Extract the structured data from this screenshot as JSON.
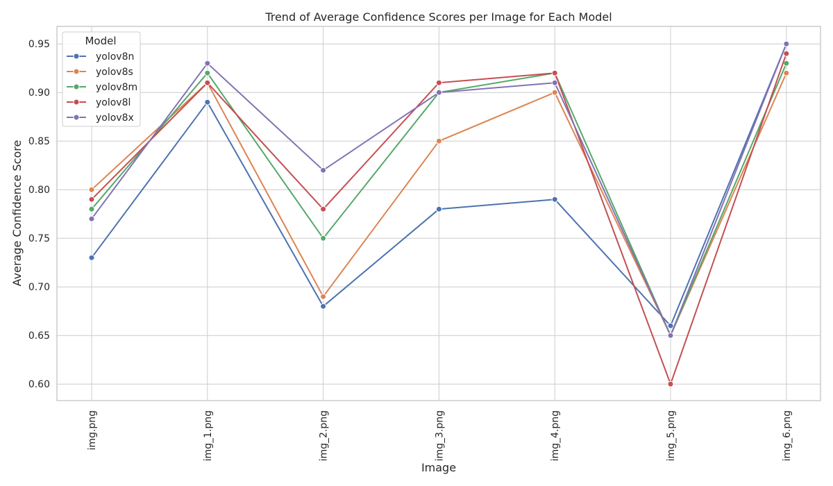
{
  "chart_data": {
    "type": "line",
    "title": "Trend of Average Confidence Scores per Image for Each Model",
    "xlabel": "Image",
    "ylabel": "Average Confidence Score",
    "categories": [
      "img.png",
      "img_1.png",
      "img_2.png",
      "img_3.png",
      "img_4.png",
      "img_5.png",
      "img_6.png"
    ],
    "yticks": [
      "0.60",
      "0.65",
      "0.70",
      "0.75",
      "0.80",
      "0.85",
      "0.90",
      "0.95"
    ],
    "ylim": [
      0.583,
      0.968
    ],
    "grid": true,
    "legend": {
      "title": "Model",
      "placement": "top-left"
    },
    "series": [
      {
        "name": "yolov8n",
        "color": "#4c72b0",
        "values": [
          0.73,
          0.89,
          0.68,
          0.78,
          0.79,
          0.66,
          0.95
        ]
      },
      {
        "name": "yolov8s",
        "color": "#dd8452",
        "values": [
          0.8,
          0.91,
          0.69,
          0.85,
          0.9,
          0.65,
          0.92
        ]
      },
      {
        "name": "yolov8m",
        "color": "#55a868",
        "values": [
          0.78,
          0.92,
          0.75,
          0.9,
          0.92,
          0.65,
          0.93
        ]
      },
      {
        "name": "yolov8l",
        "color": "#c44e52",
        "values": [
          0.79,
          0.91,
          0.78,
          0.91,
          0.92,
          0.6,
          0.94
        ]
      },
      {
        "name": "yolov8x",
        "color": "#8172b3",
        "values": [
          0.77,
          0.93,
          0.82,
          0.9,
          0.91,
          0.65,
          0.95
        ]
      }
    ]
  }
}
